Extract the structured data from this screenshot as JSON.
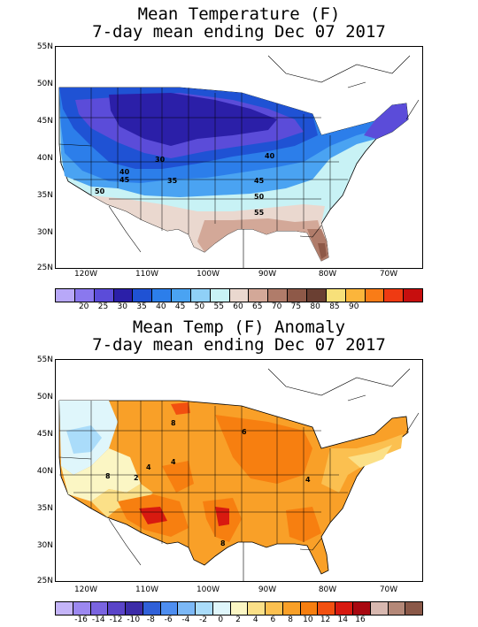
{
  "panel1": {
    "title_line1": "Mean Temperature (F)",
    "title_line2": "7-day mean ending Dec 07 2017",
    "lat_labels": [
      "55N",
      "50N",
      "45N",
      "40N",
      "35N",
      "30N",
      "25N"
    ],
    "lon_labels": [
      "120W",
      "110W",
      "100W",
      "90W",
      "80W",
      "70W"
    ],
    "contour_labels": [
      "30",
      "40",
      "45",
      "35",
      "45",
      "50",
      "55",
      "40",
      "50"
    ],
    "colorbar": {
      "colors": [
        "#b8a8f8",
        "#8a78ee",
        "#5b4cd9",
        "#2b1fa8",
        "#1f52d4",
        "#2c7eea",
        "#4aa3f2",
        "#8fd0f7",
        "#c8f2f5",
        "#ead8cf",
        "#d3a898",
        "#b07c6a",
        "#8e5948",
        "#6a3f32",
        "#f7e07a",
        "#fbb53b",
        "#f97c17",
        "#ef3a12",
        "#c70e0e"
      ],
      "labels": [
        "20",
        "25",
        "30",
        "35",
        "40",
        "45",
        "50",
        "55",
        "60",
        "65",
        "70",
        "75",
        "80",
        "85",
        "90"
      ]
    }
  },
  "panel2": {
    "title_line1": "Mean Temp (F) Anomaly",
    "title_line2": "7-day mean ending Dec 07 2017",
    "lat_labels": [
      "55N",
      "50N",
      "45N",
      "40N",
      "35N",
      "30N",
      "25N"
    ],
    "lon_labels": [
      "120W",
      "110W",
      "100W",
      "90W",
      "80W",
      "70W"
    ],
    "contour_labels": [
      "8",
      "6",
      "4",
      "2",
      "4",
      "4",
      "8",
      "8"
    ],
    "colorbar": {
      "colors": [
        "#c4b4f8",
        "#9c88f0",
        "#7a64e0",
        "#5a44c8",
        "#3c2ca8",
        "#3060d8",
        "#4e8ef0",
        "#7cb8f6",
        "#aadcfa",
        "#dff6fb",
        "#fbf6c4",
        "#fbe088",
        "#fbc050",
        "#f9a028",
        "#f77f10",
        "#f25010",
        "#d81a10",
        "#a80810",
        "#d8b8b0",
        "#b48878",
        "#8a5848"
      ],
      "labels": [
        "-16",
        "-14",
        "-12",
        "-10",
        "-8",
        "-6",
        "-4",
        "-2",
        "0",
        "2",
        "4",
        "6",
        "8",
        "10",
        "12",
        "14",
        "16"
      ]
    }
  }
}
